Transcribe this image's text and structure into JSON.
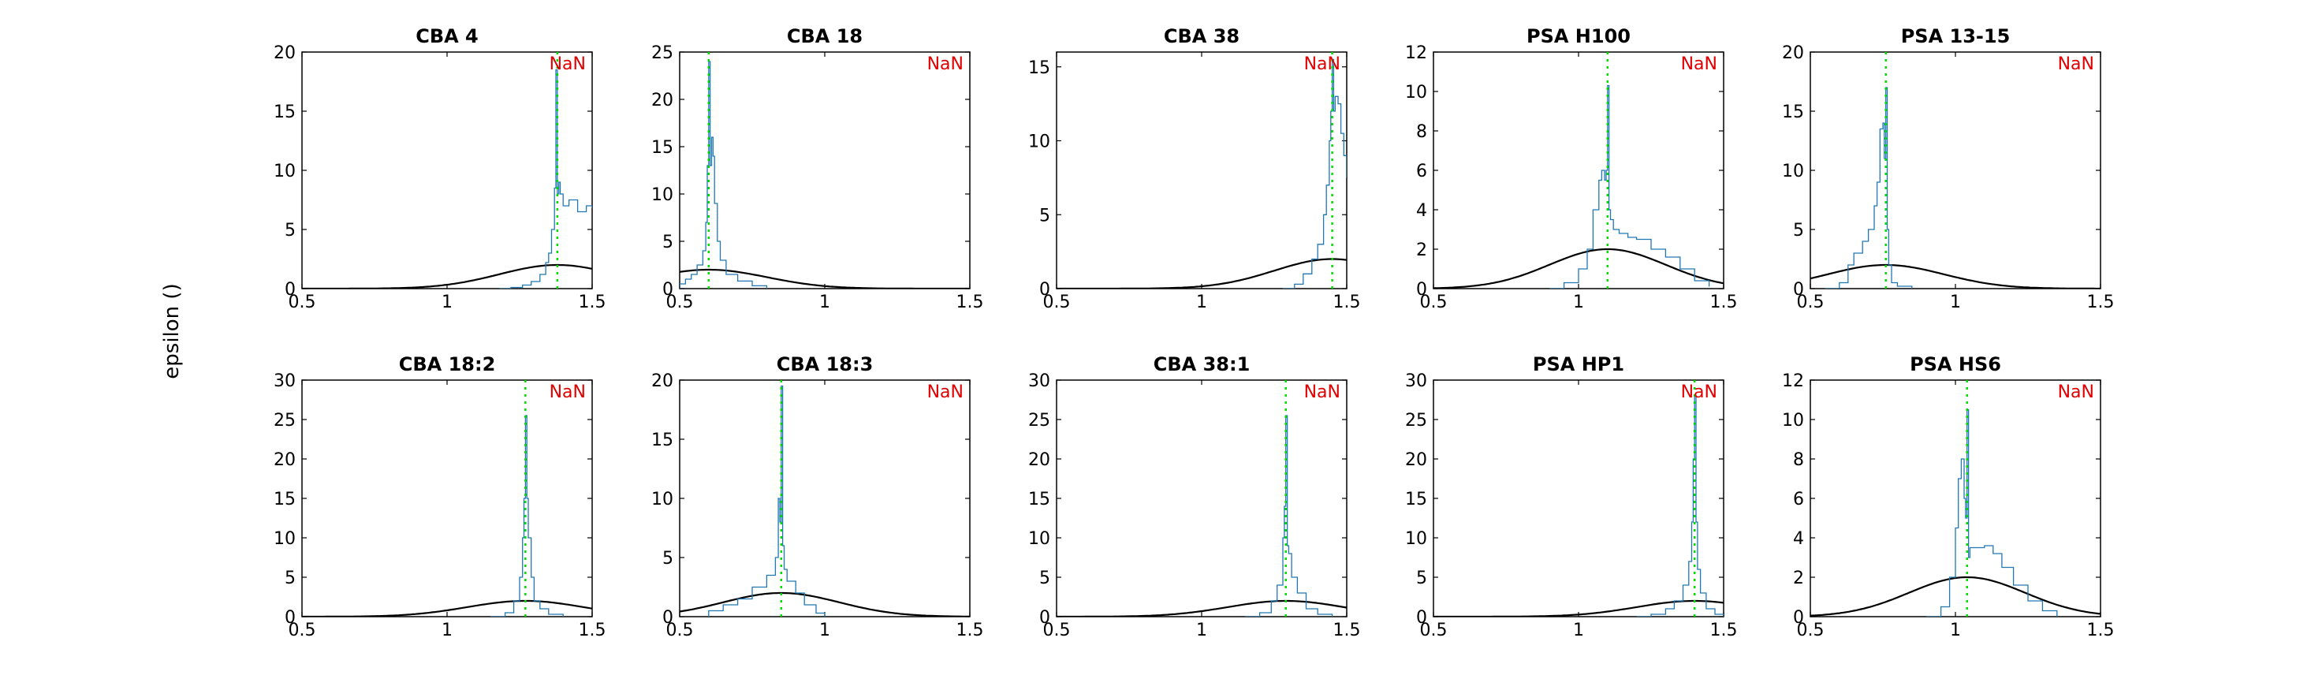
{
  "figure": {
    "ylabel": "epsilon ()",
    "annotation_text": "NaN",
    "colors": {
      "histogram": "#1f77b4",
      "gaussian": "#000000",
      "peak_line": "#00dd00",
      "annotation": "#e00000"
    }
  },
  "chart_data": [
    {
      "type": "line",
      "title": "CBA 4",
      "xlim": [
        0.5,
        1.5
      ],
      "ylim": [
        0,
        20
      ],
      "xticks": [
        0.5,
        1,
        1.5
      ],
      "yticks": [
        0,
        5,
        10,
        15,
        20
      ],
      "peak_x": 1.38,
      "gauss": {
        "mu": 1.38,
        "sigma": 0.2,
        "amp": 2.0
      },
      "series": [
        {
          "x": [
            1.18,
            1.22,
            1.26,
            1.29,
            1.32,
            1.34,
            1.35,
            1.36,
            1.37,
            1.375,
            1.38,
            1.385,
            1.39,
            1.4,
            1.42,
            1.45,
            1.48,
            1.5
          ],
          "y": [
            0,
            0.1,
            0.3,
            0.6,
            1.2,
            2.2,
            3.0,
            5.0,
            8.5,
            18.5,
            8.0,
            9.0,
            8.0,
            7.0,
            7.5,
            6.5,
            7.0,
            6.8
          ]
        }
      ]
    },
    {
      "type": "line",
      "title": "CBA 18",
      "xlim": [
        0.5,
        1.5
      ],
      "ylim": [
        0,
        25
      ],
      "xticks": [
        0.5,
        1,
        1.5
      ],
      "yticks": [
        0,
        5,
        10,
        15,
        20,
        25
      ],
      "peak_x": 0.6,
      "gauss": {
        "mu": 0.6,
        "sigma": 0.2,
        "amp": 2.0
      },
      "series": [
        {
          "x": [
            0.5,
            0.52,
            0.54,
            0.56,
            0.58,
            0.59,
            0.595,
            0.6,
            0.605,
            0.61,
            0.615,
            0.62,
            0.63,
            0.64,
            0.66,
            0.7,
            0.75,
            0.8
          ],
          "y": [
            0.5,
            1.0,
            1.5,
            2.5,
            4.0,
            7.0,
            13.0,
            24.0,
            13.0,
            16.0,
            14.0,
            9.0,
            5.0,
            3.0,
            1.5,
            0.8,
            0.3,
            0
          ]
        }
      ]
    },
    {
      "type": "line",
      "title": "CBA 38",
      "xlim": [
        0.5,
        1.5
      ],
      "ylim": [
        0,
        16
      ],
      "xticks": [
        0.5,
        1,
        1.5
      ],
      "yticks": [
        0,
        5,
        10,
        15
      ],
      "peak_x": 1.45,
      "gauss": {
        "mu": 1.45,
        "sigma": 0.2,
        "amp": 2.0
      },
      "series": [
        {
          "x": [
            1.28,
            1.32,
            1.35,
            1.38,
            1.4,
            1.42,
            1.43,
            1.44,
            1.445,
            1.45,
            1.455,
            1.46,
            1.47,
            1.48,
            1.49,
            1.5
          ],
          "y": [
            0,
            0.3,
            1.0,
            2.0,
            3.0,
            5.0,
            7.0,
            10.0,
            12.0,
            15.5,
            12.0,
            13.0,
            12.5,
            10.5,
            9.0,
            7.5
          ]
        }
      ]
    },
    {
      "type": "line",
      "title": "PSA H100",
      "xlim": [
        0.5,
        1.5
      ],
      "ylim": [
        0,
        12
      ],
      "xticks": [
        0.5,
        1,
        1.5
      ],
      "yticks": [
        0,
        2,
        4,
        6,
        8,
        10,
        12
      ],
      "peak_x": 1.1,
      "gauss": {
        "mu": 1.1,
        "sigma": 0.2,
        "amp": 2.0
      },
      "series": [
        {
          "x": [
            0.9,
            0.95,
            1.0,
            1.03,
            1.05,
            1.07,
            1.08,
            1.09,
            1.095,
            1.1,
            1.105,
            1.11,
            1.12,
            1.14,
            1.17,
            1.2,
            1.25,
            1.3,
            1.35,
            1.4,
            1.45
          ],
          "y": [
            0,
            0.3,
            1.0,
            2.0,
            4.0,
            5.5,
            6.0,
            5.5,
            6.0,
            10.3,
            4.0,
            3.5,
            3.0,
            2.8,
            2.6,
            2.5,
            2.0,
            1.6,
            1.0,
            0.4,
            0.1
          ]
        }
      ]
    },
    {
      "type": "line",
      "title": "PSA 13-15",
      "xlim": [
        0.5,
        1.5
      ],
      "ylim": [
        0,
        20
      ],
      "xticks": [
        0.5,
        1,
        1.5
      ],
      "yticks": [
        0,
        5,
        10,
        15,
        20
      ],
      "peak_x": 0.76,
      "gauss": {
        "mu": 0.76,
        "sigma": 0.2,
        "amp": 2.0
      },
      "series": [
        {
          "x": [
            0.55,
            0.6,
            0.63,
            0.65,
            0.68,
            0.7,
            0.72,
            0.73,
            0.74,
            0.75,
            0.755,
            0.76,
            0.765,
            0.77,
            0.78,
            0.8,
            0.85
          ],
          "y": [
            0,
            0.5,
            2.0,
            3.0,
            4.0,
            5.0,
            7.0,
            9.0,
            13.5,
            14.0,
            11.0,
            17.0,
            5.0,
            2.0,
            0.5,
            0.2,
            0
          ]
        }
      ]
    },
    {
      "type": "line",
      "title": "CBA 18:2",
      "xlim": [
        0.5,
        1.5
      ],
      "ylim": [
        0,
        30
      ],
      "xticks": [
        0.5,
        1,
        1.5
      ],
      "yticks": [
        0,
        5,
        10,
        15,
        20,
        25,
        30
      ],
      "peak_x": 1.27,
      "gauss": {
        "mu": 1.27,
        "sigma": 0.2,
        "amp": 2.0
      },
      "series": [
        {
          "x": [
            1.15,
            1.2,
            1.23,
            1.25,
            1.26,
            1.265,
            1.27,
            1.275,
            1.28,
            1.29,
            1.3,
            1.32,
            1.35,
            1.4
          ],
          "y": [
            0,
            0.5,
            2.0,
            5.0,
            10.0,
            15.0,
            25.5,
            15.0,
            10.0,
            5.0,
            2.0,
            1.0,
            0.3,
            0
          ]
        }
      ]
    },
    {
      "type": "line",
      "title": "CBA 18:3",
      "xlim": [
        0.5,
        1.5
      ],
      "ylim": [
        0,
        20
      ],
      "xticks": [
        0.5,
        1,
        1.5
      ],
      "yticks": [
        0,
        5,
        10,
        15,
        20
      ],
      "peak_x": 0.85,
      "gauss": {
        "mu": 0.85,
        "sigma": 0.2,
        "amp": 2.0
      },
      "series": [
        {
          "x": [
            0.6,
            0.65,
            0.7,
            0.75,
            0.8,
            0.83,
            0.84,
            0.845,
            0.85,
            0.855,
            0.86,
            0.87,
            0.9,
            0.93,
            0.97,
            1.0
          ],
          "y": [
            0.5,
            1.0,
            1.5,
            2.5,
            3.5,
            5.0,
            10.0,
            8.0,
            19.5,
            6.0,
            4.0,
            3.0,
            2.0,
            1.0,
            0.3,
            0
          ]
        }
      ]
    },
    {
      "type": "line",
      "title": "CBA 38:1",
      "xlim": [
        0.5,
        1.5
      ],
      "ylim": [
        0,
        30
      ],
      "xticks": [
        0.5,
        1,
        1.5
      ],
      "yticks": [
        0,
        5,
        10,
        15,
        20,
        25,
        30
      ],
      "peak_x": 1.29,
      "gauss": {
        "mu": 1.29,
        "sigma": 0.2,
        "amp": 2.0
      },
      "series": [
        {
          "x": [
            1.15,
            1.2,
            1.24,
            1.26,
            1.28,
            1.285,
            1.29,
            1.295,
            1.3,
            1.31,
            1.33,
            1.36,
            1.4,
            1.45
          ],
          "y": [
            0,
            0.5,
            2.0,
            4.0,
            10.0,
            14.0,
            25.5,
            9.0,
            8.0,
            5.0,
            3.0,
            1.0,
            0.3,
            0
          ]
        }
      ]
    },
    {
      "type": "line",
      "title": "PSA HP1",
      "xlim": [
        0.5,
        1.5
      ],
      "ylim": [
        0,
        30
      ],
      "xticks": [
        0.5,
        1,
        1.5
      ],
      "yticks": [
        0,
        5,
        10,
        15,
        20,
        25,
        30
      ],
      "peak_x": 1.4,
      "gauss": {
        "mu": 1.4,
        "sigma": 0.2,
        "amp": 2.0
      },
      "series": [
        {
          "x": [
            1.2,
            1.25,
            1.3,
            1.33,
            1.36,
            1.38,
            1.39,
            1.395,
            1.4,
            1.405,
            1.41,
            1.42,
            1.44,
            1.47,
            1.5
          ],
          "y": [
            0,
            0.3,
            1.0,
            2.0,
            4.0,
            7.0,
            12.0,
            20.0,
            28.0,
            12.0,
            6.0,
            3.0,
            1.0,
            0.3,
            0
          ]
        }
      ]
    },
    {
      "type": "line",
      "title": "PSA HS6",
      "xlim": [
        0.5,
        1.5
      ],
      "ylim": [
        0,
        12
      ],
      "xticks": [
        0.5,
        1,
        1.5
      ],
      "yticks": [
        0,
        2,
        4,
        6,
        8,
        10,
        12
      ],
      "peak_x": 1.04,
      "gauss": {
        "mu": 1.04,
        "sigma": 0.2,
        "amp": 2.0
      },
      "series": [
        {
          "x": [
            0.9,
            0.95,
            0.98,
            1.0,
            1.01,
            1.02,
            1.03,
            1.035,
            1.04,
            1.045,
            1.05,
            1.07,
            1.1,
            1.13,
            1.16,
            1.2,
            1.25,
            1.3,
            1.35
          ],
          "y": [
            0,
            0.5,
            2.0,
            4.5,
            7.0,
            8.0,
            6.0,
            5.0,
            10.5,
            3.0,
            3.5,
            3.5,
            3.6,
            3.2,
            2.5,
            1.6,
            0.8,
            0.3,
            0
          ]
        }
      ]
    }
  ]
}
